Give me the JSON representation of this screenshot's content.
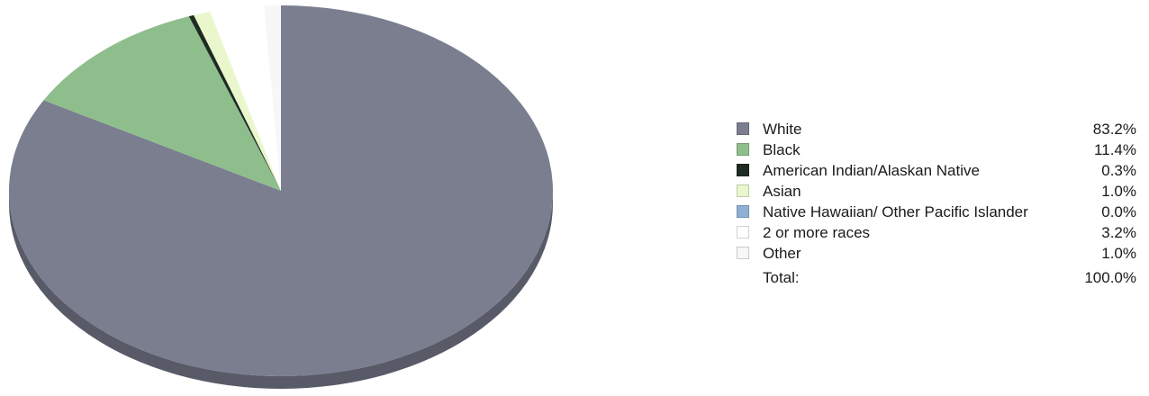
{
  "chart_data": {
    "type": "pie",
    "slices": [
      {
        "label": "White",
        "value": 83.2,
        "display": "83.2%",
        "color": "#7a7e8f"
      },
      {
        "label": "Black",
        "value": 11.4,
        "display": "11.4%",
        "color": "#8fbe8d"
      },
      {
        "label": "American Indian/Alaskan Native",
        "value": 0.3,
        "display": "0.3%",
        "color": "#1f2b22"
      },
      {
        "label": "Asian",
        "value": 1.0,
        "display": "1.0%",
        "color": "#eaf7cc"
      },
      {
        "label": "Native Hawaiian/ Other Pacific Islander",
        "value": 0.0,
        "display": "0.0%",
        "color": "#8fb0d2"
      },
      {
        "label": "2 or more races",
        "value": 3.2,
        "display": "3.2%",
        "color": "#ffffff"
      },
      {
        "label": "Other",
        "value": 1.0,
        "display": "1.0%",
        "color": "#f7f7f7"
      }
    ],
    "total_label": "Total:",
    "total_value": "100.0%",
    "legend_position": "right"
  }
}
